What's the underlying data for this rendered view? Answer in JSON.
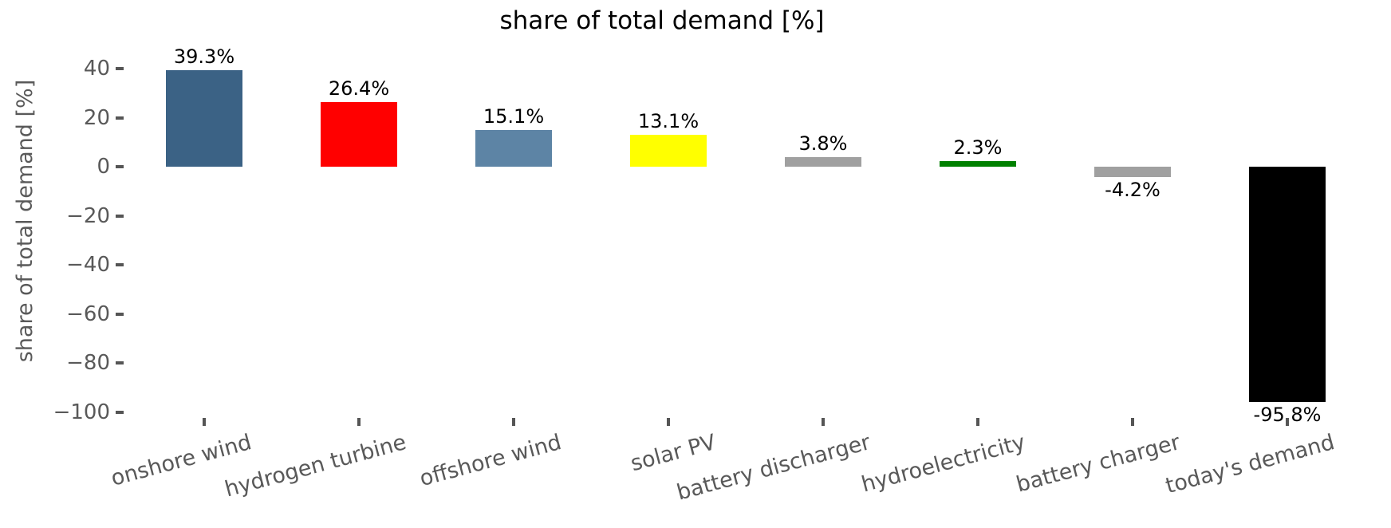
{
  "chart_data": {
    "type": "bar",
    "title": "share of total demand [%]",
    "ylabel": "share of total demand [%]",
    "xlabel": "",
    "categories": [
      "onshore wind",
      "hydrogen turbine",
      "offshore wind",
      "solar PV",
      "battery discharger",
      "hydroelectricity",
      "battery charger",
      "today's demand"
    ],
    "values": [
      39.3,
      26.4,
      15.1,
      13.1,
      3.8,
      2.3,
      -4.2,
      -95.8
    ],
    "value_labels": [
      "39.3%",
      "26.4%",
      "15.1%",
      "13.1%",
      "3.8%",
      "2.3%",
      "-4.2%",
      "-95.8%"
    ],
    "bar_colors": [
      "#3b6285",
      "#ff0000",
      "#5d84a5",
      "#ffff00",
      "#a0a0a0",
      "#008000",
      "#a0a0a0",
      "#000000"
    ],
    "yticks": [
      40,
      20,
      0,
      -20,
      -40,
      -60,
      -80,
      -100
    ],
    "ytick_labels": [
      "40",
      "20",
      "0",
      "−20",
      "−40",
      "−60",
      "−80",
      "−100"
    ],
    "ylim": [
      -102.6,
      46.1
    ],
    "grid": false,
    "legend_position": "none"
  },
  "colors": {
    "background": "#ffffff",
    "axis_text": "#595959",
    "tick_mark": "#555555",
    "value_text": "#000000",
    "title_text": "#000000"
  }
}
